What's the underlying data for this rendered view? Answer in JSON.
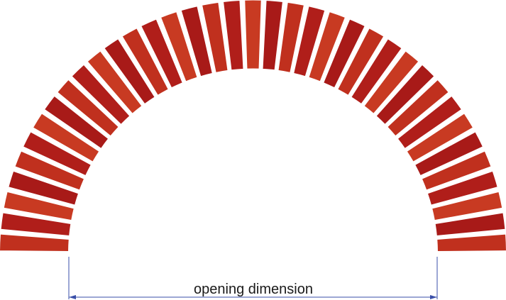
{
  "diagram": {
    "brick_count": 37,
    "brick_colors": [
      "#c0301e",
      "#b01e1a",
      "#c83a22",
      "#a81a18"
    ],
    "mortar_color": "#ffffff",
    "dimension": {
      "label": "opening dimension",
      "line_color": "#3a4fa8"
    }
  }
}
